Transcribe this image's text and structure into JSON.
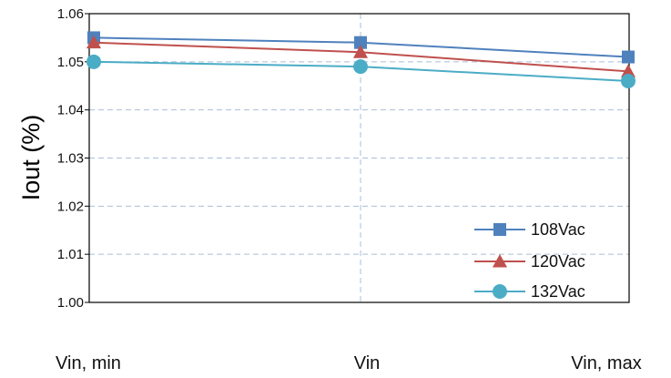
{
  "chart_data": {
    "type": "line",
    "categories": [
      "Vin, min",
      "Vin",
      "Vin, max"
    ],
    "ylabel": "Iout (%)",
    "ylim": [
      1.0,
      1.06
    ],
    "yticks": [
      "1.00",
      "1.01",
      "1.02",
      "1.03",
      "1.04",
      "1.05",
      "1.06"
    ],
    "grid": true,
    "legend_position": "bottom-right",
    "series": [
      {
        "name": "108Vac",
        "color": "#4f81bd",
        "marker": "square",
        "values": [
          1.055,
          1.054,
          1.051
        ]
      },
      {
        "name": "120Vac",
        "color": "#c0504d",
        "marker": "triangle",
        "values": [
          1.054,
          1.052,
          1.048
        ]
      },
      {
        "name": "132Vac",
        "color": "#4bacc6",
        "marker": "circle",
        "values": [
          1.05,
          1.049,
          1.046
        ]
      }
    ]
  }
}
